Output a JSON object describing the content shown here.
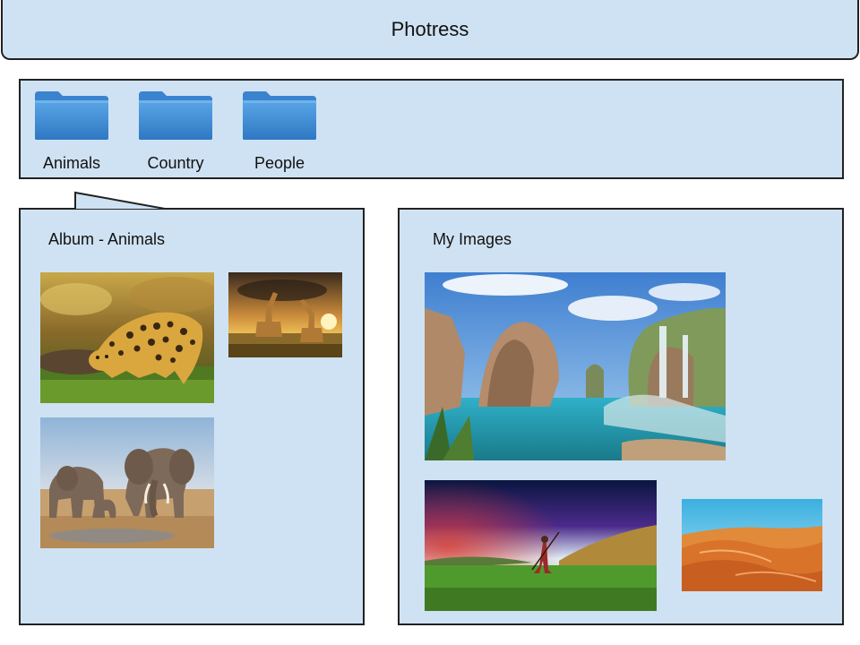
{
  "header": {
    "title": "Photress"
  },
  "folders": [
    {
      "label": "Animals",
      "icon": "folder-icon"
    },
    {
      "label": "Country",
      "icon": "folder-icon"
    },
    {
      "label": "People",
      "icon": "folder-icon"
    }
  ],
  "album": {
    "title": "Album - Animals",
    "photos": [
      "leopard",
      "giraffes",
      "elephants"
    ]
  },
  "my_images": {
    "title": "My Images",
    "photos": [
      "fantasy-coast-waterfall",
      "hunter-in-meadow",
      "desert-dunes"
    ]
  },
  "colors": {
    "panel_bg": "#cfe2f3",
    "border": "#222222",
    "folder_blue": "#3f8fd6"
  }
}
